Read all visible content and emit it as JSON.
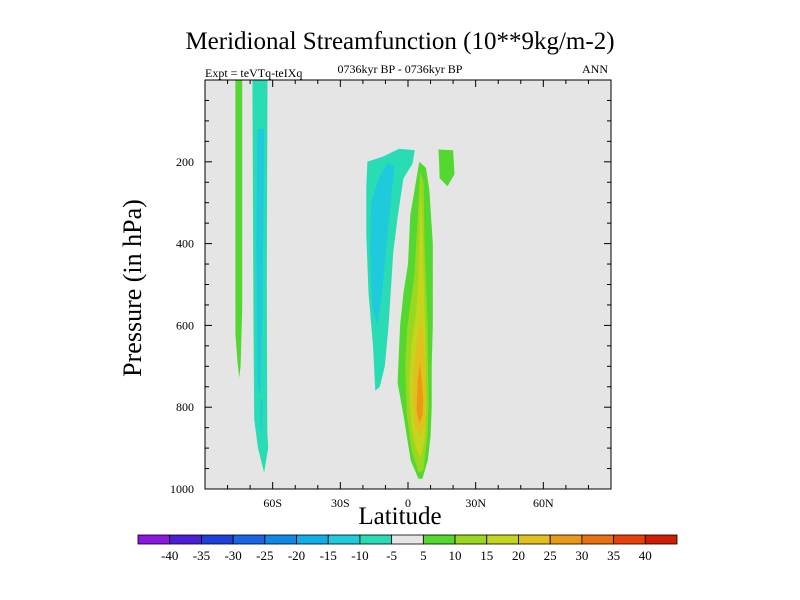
{
  "chart_data": {
    "type": "contour",
    "title": "Meridional Streamfunction (10**9kg/m-2)",
    "subtitle": "0736kyr BP - 0736kyr BP",
    "left_label": "Expt = teVTq-teIXq",
    "right_label": "ANN",
    "xlabel": "Latitude",
    "ylabel": "Pressure (in hPa)",
    "xlim": [
      -90,
      90
    ],
    "ylim": [
      1000,
      0
    ],
    "x_ticks": [
      {
        "value": -60,
        "label": "60S"
      },
      {
        "value": -30,
        "label": "30S"
      },
      {
        "value": 0,
        "label": "0"
      },
      {
        "value": 30,
        "label": "30N"
      },
      {
        "value": 60,
        "label": "60N"
      }
    ],
    "y_ticks": [
      {
        "value": 200,
        "label": "200"
      },
      {
        "value": 400,
        "label": "400"
      },
      {
        "value": 600,
        "label": "600"
      },
      {
        "value": 800,
        "label": "800"
      },
      {
        "value": 1000,
        "label": "1000"
      }
    ],
    "background_color": "#e5e5e5",
    "colorbar": {
      "levels": [
        "-40",
        "-35",
        "-30",
        "-25",
        "-20",
        "-15",
        "-10",
        "-5",
        "5",
        "10",
        "15",
        "20",
        "25",
        "30",
        "35",
        "40"
      ],
      "colors": [
        "#8a18e0",
        "#4b1ed8",
        "#1f3fdc",
        "#1a64e6",
        "#1088e6",
        "#10aee8",
        "#1ecadc",
        "#2adcb4",
        "#e5e5e5",
        "#52d830",
        "#9ad820",
        "#c4d51e",
        "#e0c01c",
        "#e89a16",
        "#e87010",
        "#e84008",
        "#d01e00"
      ]
    },
    "regions": [
      {
        "name": "green-strip-left",
        "level": "5 to 10",
        "color": "#52d830",
        "points": [
          [
            -76.5,
            0
          ],
          [
            -73.5,
            0
          ],
          [
            -73.5,
            560
          ],
          [
            -74.2,
            700
          ],
          [
            -74.8,
            728
          ],
          [
            -75.6,
            690
          ],
          [
            -76.5,
            620
          ]
        ]
      },
      {
        "name": "cyan-strip-high-lat",
        "level": "-10 to -5",
        "color": "#2adcb4",
        "points": [
          [
            -69,
            0
          ],
          [
            -62.3,
            0
          ],
          [
            -62.6,
            500
          ],
          [
            -62.4,
            860
          ],
          [
            -62,
            900
          ],
          [
            -63.8,
            960
          ],
          [
            -66.5,
            900
          ],
          [
            -68.2,
            830
          ],
          [
            -68.5,
            600
          ]
        ]
      },
      {
        "name": "blue-core-high-lat",
        "level": "-15 to -10",
        "color": "#1ecadc",
        "points": [
          [
            -66.8,
            120
          ],
          [
            -63.8,
            120
          ],
          [
            -64,
            300
          ],
          [
            -64.6,
            560
          ],
          [
            -65.4,
            770
          ],
          [
            -66.8,
            740
          ],
          [
            -67.2,
            400
          ]
        ]
      },
      {
        "name": "blue-core-high-lat-deep",
        "level": "-15 to -10",
        "color": "#1ecadc",
        "points": [
          [
            -65.5,
            780
          ],
          [
            -64.4,
            780
          ],
          [
            -64.8,
            850
          ],
          [
            -65.4,
            860
          ]
        ]
      },
      {
        "name": "cyan-cell-tropics",
        "level": "-10 to -5",
        "color": "#2adcb4",
        "points": [
          [
            -18,
            200
          ],
          [
            -11,
            187
          ],
          [
            -4,
            168
          ],
          [
            3,
            172
          ],
          [
            2,
            205
          ],
          [
            -2,
            240
          ],
          [
            -4.5,
            330
          ],
          [
            -6.5,
            420
          ],
          [
            -8.6,
            600
          ],
          [
            -10.3,
            700
          ],
          [
            -12.5,
            750
          ],
          [
            -14.5,
            760
          ],
          [
            -15.5,
            650
          ],
          [
            -17.5,
            520
          ],
          [
            -18.5,
            380
          ],
          [
            -18.5,
            260
          ]
        ]
      },
      {
        "name": "blue-core-tropics",
        "level": "-15 to -10",
        "color": "#1ecadc",
        "points": [
          [
            -16.4,
            300
          ],
          [
            -12.5,
            235
          ],
          [
            -9,
            203
          ],
          [
            -6,
            210
          ],
          [
            -7.5,
            290
          ],
          [
            -9.5,
            400
          ],
          [
            -11.5,
            520
          ],
          [
            -13.5,
            600
          ],
          [
            -15.8,
            560
          ],
          [
            -16.8,
            420
          ]
        ]
      },
      {
        "name": "green-cell-tropics",
        "level": "5 to 10",
        "color": "#52d830",
        "points": [
          [
            5,
            200
          ],
          [
            8,
            215
          ],
          [
            9.5,
            270
          ],
          [
            11,
            400
          ],
          [
            11,
            600
          ],
          [
            10.5,
            700
          ],
          [
            10.5,
            800
          ],
          [
            10,
            870
          ],
          [
            8.8,
            930
          ],
          [
            6.4,
            975
          ],
          [
            4.6,
            975
          ],
          [
            1.2,
            930
          ],
          [
            -2,
            820
          ],
          [
            -4.6,
            740
          ],
          [
            -3.5,
            600
          ],
          [
            -2,
            520
          ],
          [
            0,
            450
          ],
          [
            1,
            330
          ]
        ]
      },
      {
        "name": "green-cell-upper-nh",
        "level": "5 to 10",
        "color": "#52d830",
        "points": [
          [
            13.5,
            170
          ],
          [
            20,
            172
          ],
          [
            20.6,
            230
          ],
          [
            17.5,
            260
          ],
          [
            14,
            240
          ],
          [
            13.8,
            200
          ]
        ]
      },
      {
        "name": "lime-band",
        "level": "10 to 15",
        "color": "#9ad820",
        "points": [
          [
            5.3,
            225
          ],
          [
            6.9,
            250
          ],
          [
            7.3,
            400
          ],
          [
            8.7,
            600
          ],
          [
            9.1,
            800
          ],
          [
            8.6,
            870
          ],
          [
            6.8,
            955
          ],
          [
            4.8,
            960
          ],
          [
            1.8,
            910
          ],
          [
            -0.5,
            820
          ],
          [
            -1.3,
            700
          ],
          [
            -0.2,
            600
          ],
          [
            2.8,
            480
          ],
          [
            4.2,
            350
          ]
        ]
      },
      {
        "name": "yellow-band",
        "level": "15 to 20",
        "color": "#c4d51e",
        "points": [
          [
            5.6,
            270
          ],
          [
            6.4,
            350
          ],
          [
            6.8,
            450
          ],
          [
            7.6,
            600
          ],
          [
            8.1,
            800
          ],
          [
            7.5,
            880
          ],
          [
            5.5,
            925
          ],
          [
            3.5,
            900
          ],
          [
            1.5,
            850
          ],
          [
            0.5,
            750
          ],
          [
            1.5,
            650
          ],
          [
            3.8,
            560
          ],
          [
            4.8,
            450
          ]
        ]
      },
      {
        "name": "gold-band",
        "level": "20 to 25",
        "color": "#e0c01c",
        "points": [
          [
            6,
            590
          ],
          [
            7,
            650
          ],
          [
            7.8,
            760
          ],
          [
            7.4,
            840
          ],
          [
            5.5,
            870
          ],
          [
            3.2,
            850
          ],
          [
            2,
            780
          ],
          [
            2.8,
            700
          ],
          [
            4.2,
            630
          ]
        ]
      },
      {
        "name": "orange-core",
        "level": "25 to 30",
        "color": "#e89a16",
        "points": [
          [
            5.3,
            690
          ],
          [
            6.8,
            780
          ],
          [
            6.4,
            820
          ],
          [
            5,
            840
          ],
          [
            3.8,
            810
          ],
          [
            4.2,
            740
          ]
        ]
      }
    ]
  }
}
